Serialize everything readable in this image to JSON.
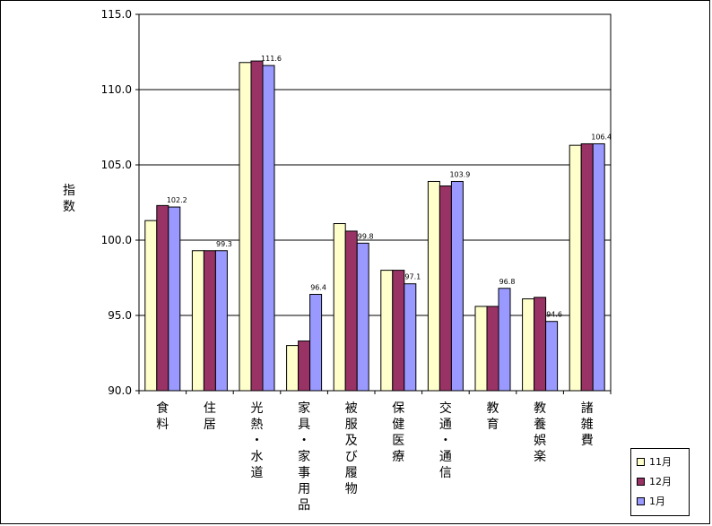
{
  "chart_data": {
    "type": "bar",
    "title": "",
    "xlabel": "",
    "ylabel": "指数",
    "ylim": [
      90.0,
      115.0
    ],
    "yticks": [
      "90.0",
      "95.0",
      "100.0",
      "105.0",
      "110.0",
      "115.0"
    ],
    "categories": [
      "食料",
      "住居",
      "光熱・水道",
      "家具・家事用品",
      "被服及び履物",
      "保健医療",
      "交通・通信",
      "教育",
      "教養娯楽",
      "諸雑費"
    ],
    "series": [
      {
        "name": "11月",
        "color": "#ffffcc",
        "values": [
          101.3,
          99.3,
          111.8,
          93.0,
          101.1,
          98.0,
          103.9,
          95.6,
          96.1,
          106.3
        ]
      },
      {
        "name": "12月",
        "color": "#993366",
        "values": [
          102.3,
          99.3,
          111.9,
          93.3,
          100.6,
          98.0,
          103.6,
          95.6,
          96.2,
          106.4
        ]
      },
      {
        "name": "1月",
        "color": "#9999ff",
        "values": [
          102.2,
          99.3,
          111.6,
          96.4,
          99.8,
          97.1,
          103.9,
          96.8,
          94.6,
          106.4
        ]
      }
    ],
    "data_labels": [
      "102.2",
      "99.3",
      "111.6",
      "96.4",
      "99.8",
      "97.1",
      "103.9",
      "96.8",
      "94.6",
      "106.4"
    ],
    "grid": true,
    "legend_position": "bottom-right"
  }
}
